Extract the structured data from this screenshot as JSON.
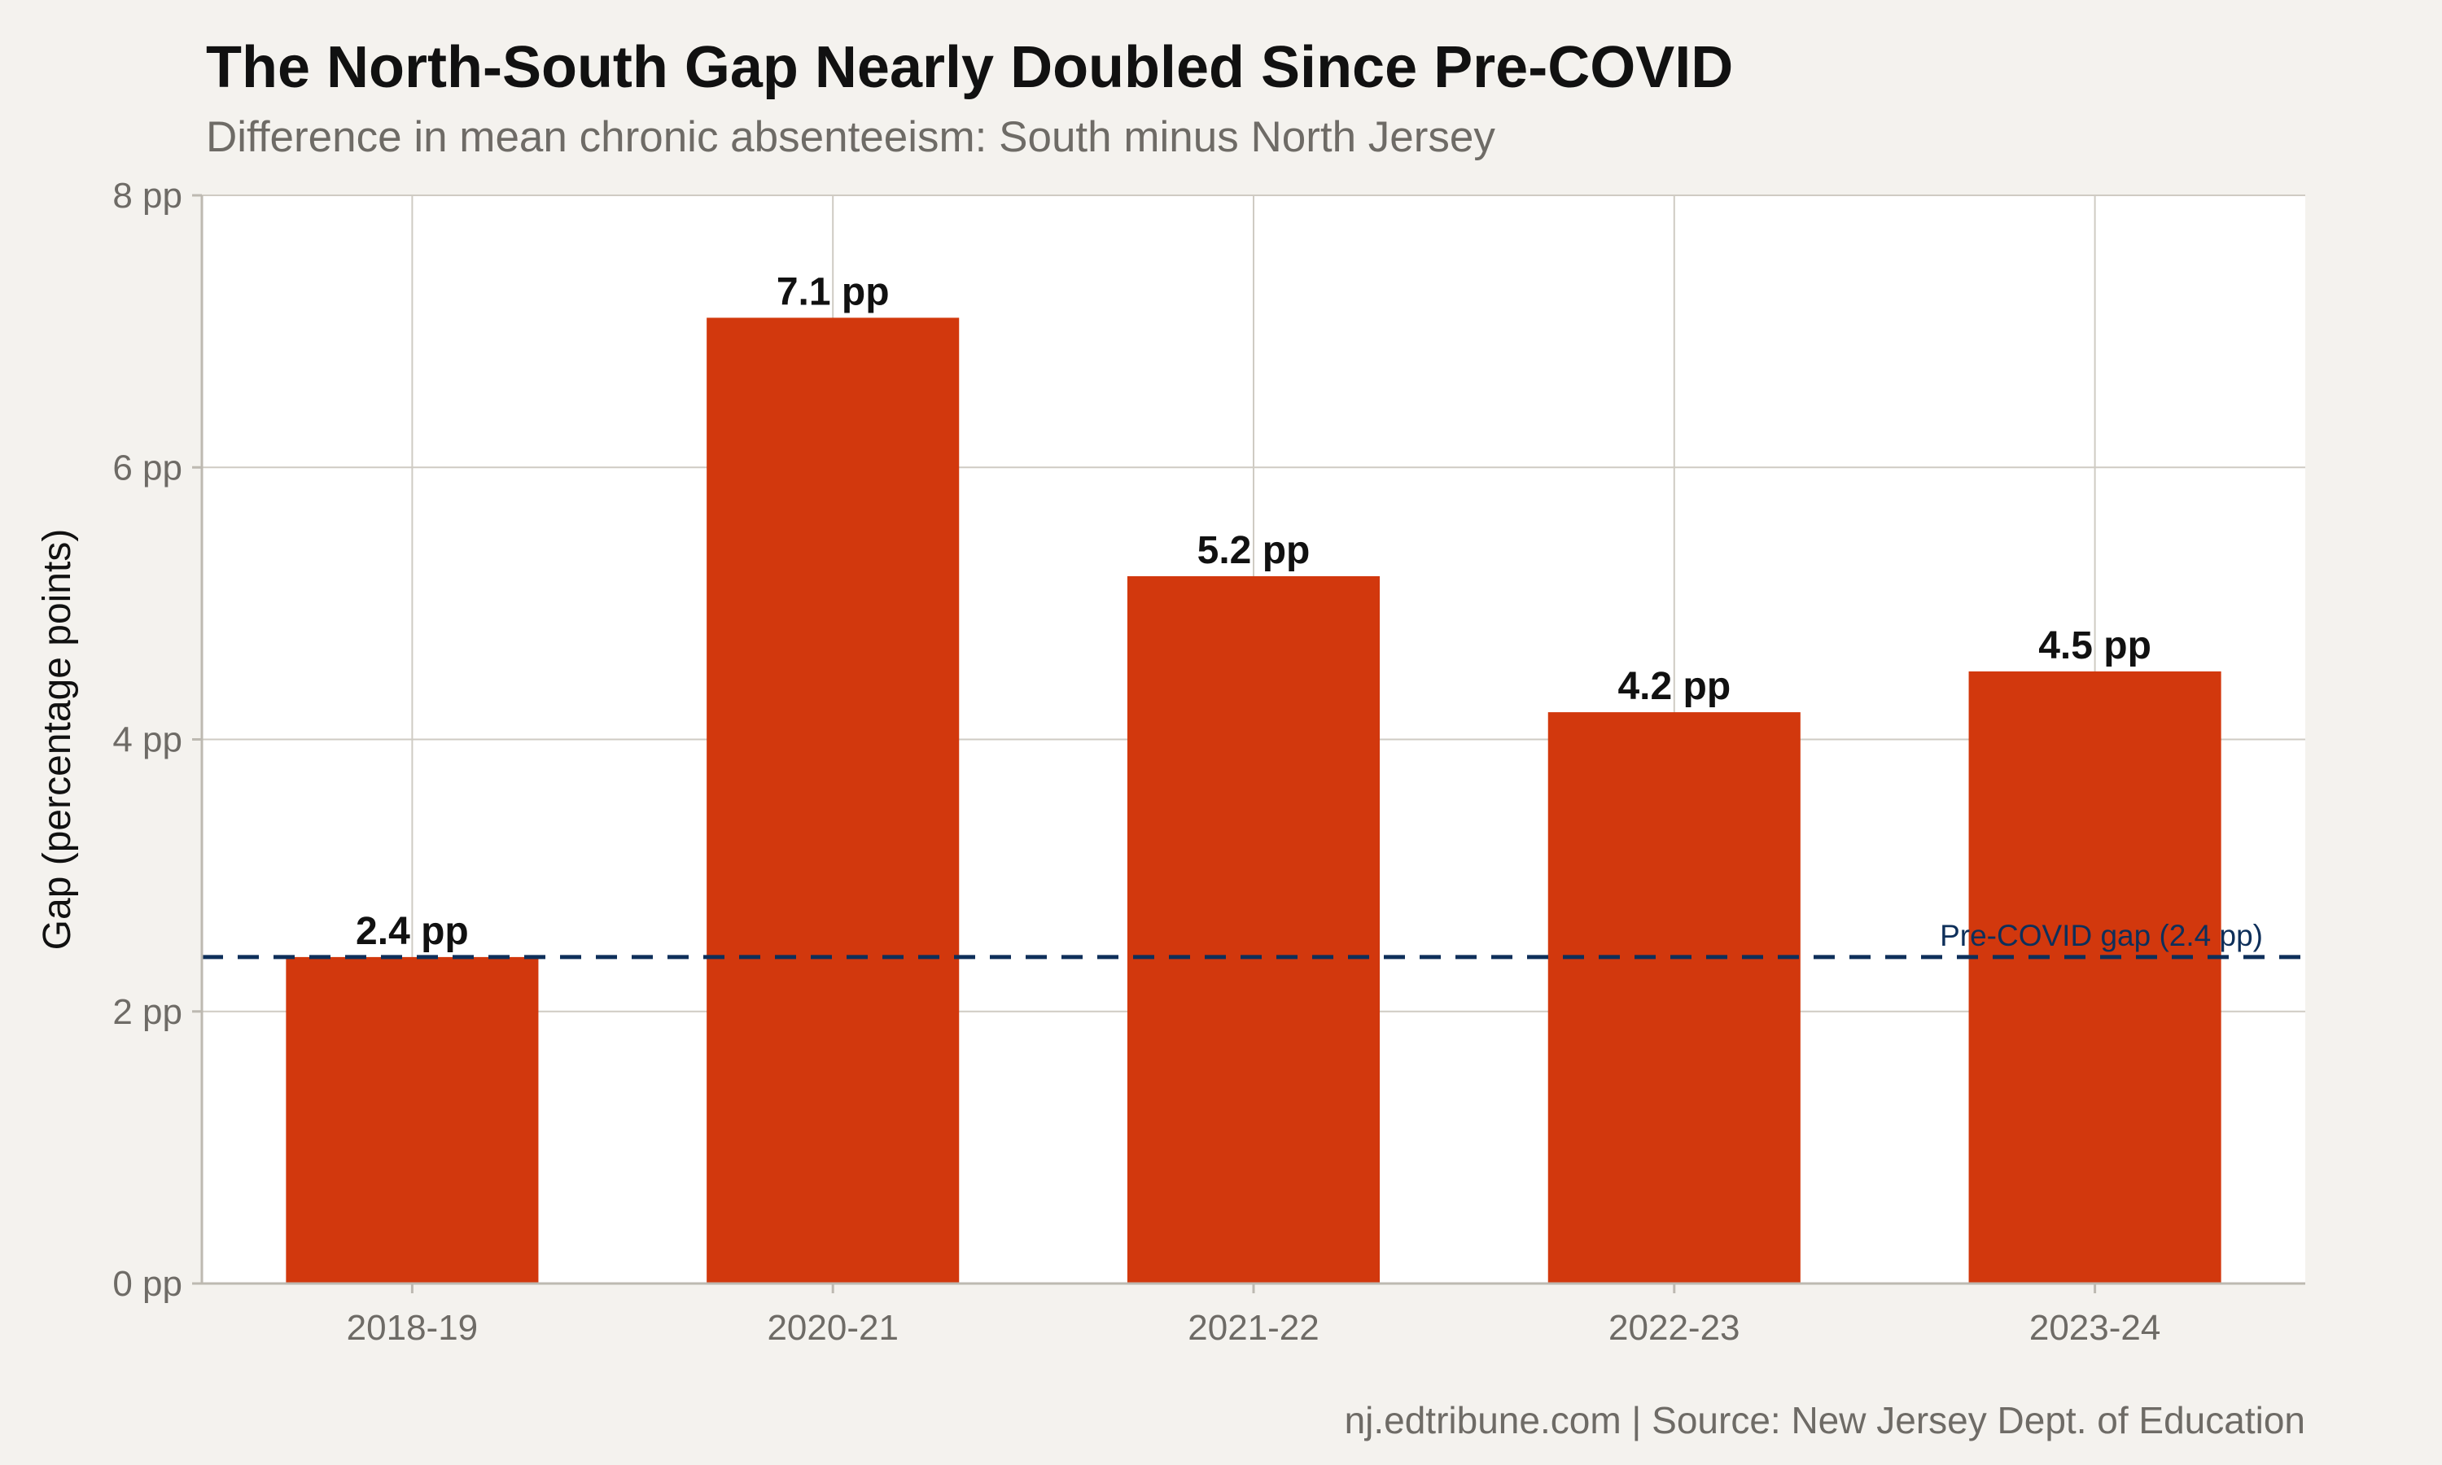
{
  "header": {
    "title": "The North-South Gap Nearly Doubled Since Pre-COVID",
    "subtitle": "Difference in mean chronic absenteeism: South minus North Jersey"
  },
  "footer": {
    "caption": "nj.edtribune.com | Source: New Jersey Dept. of Education"
  },
  "chart_data": {
    "type": "bar",
    "title": "The North-South Gap Nearly Doubled Since Pre-COVID",
    "subtitle": "Difference in mean chronic absenteeism: South minus North Jersey",
    "xlabel": "",
    "ylabel": "Gap (percentage points)",
    "categories": [
      "2018-19",
      "2020-21",
      "2021-22",
      "2022-23",
      "2023-24"
    ],
    "values": [
      2.4,
      7.1,
      5.2,
      4.2,
      4.5
    ],
    "data_labels": [
      "2.4 pp",
      "7.1 pp",
      "5.2 pp",
      "4.2 pp",
      "4.5 pp"
    ],
    "ylim": [
      0,
      8
    ],
    "yticks": [
      0,
      2,
      4,
      6,
      8
    ],
    "ytick_labels": [
      "0 pp",
      "2 pp",
      "4 pp",
      "6 pp",
      "8 pp"
    ],
    "grid": true,
    "legend": "none",
    "reference_line": {
      "value": 2.4,
      "label": "Pre-COVID gap (2.4 pp)",
      "style": "dashed",
      "color": "#0e2f5a"
    },
    "colors": {
      "bar": "#d2380d",
      "panel": "#ffffff",
      "background": "#f4f2ee",
      "grid": "#cfcbc3"
    }
  }
}
